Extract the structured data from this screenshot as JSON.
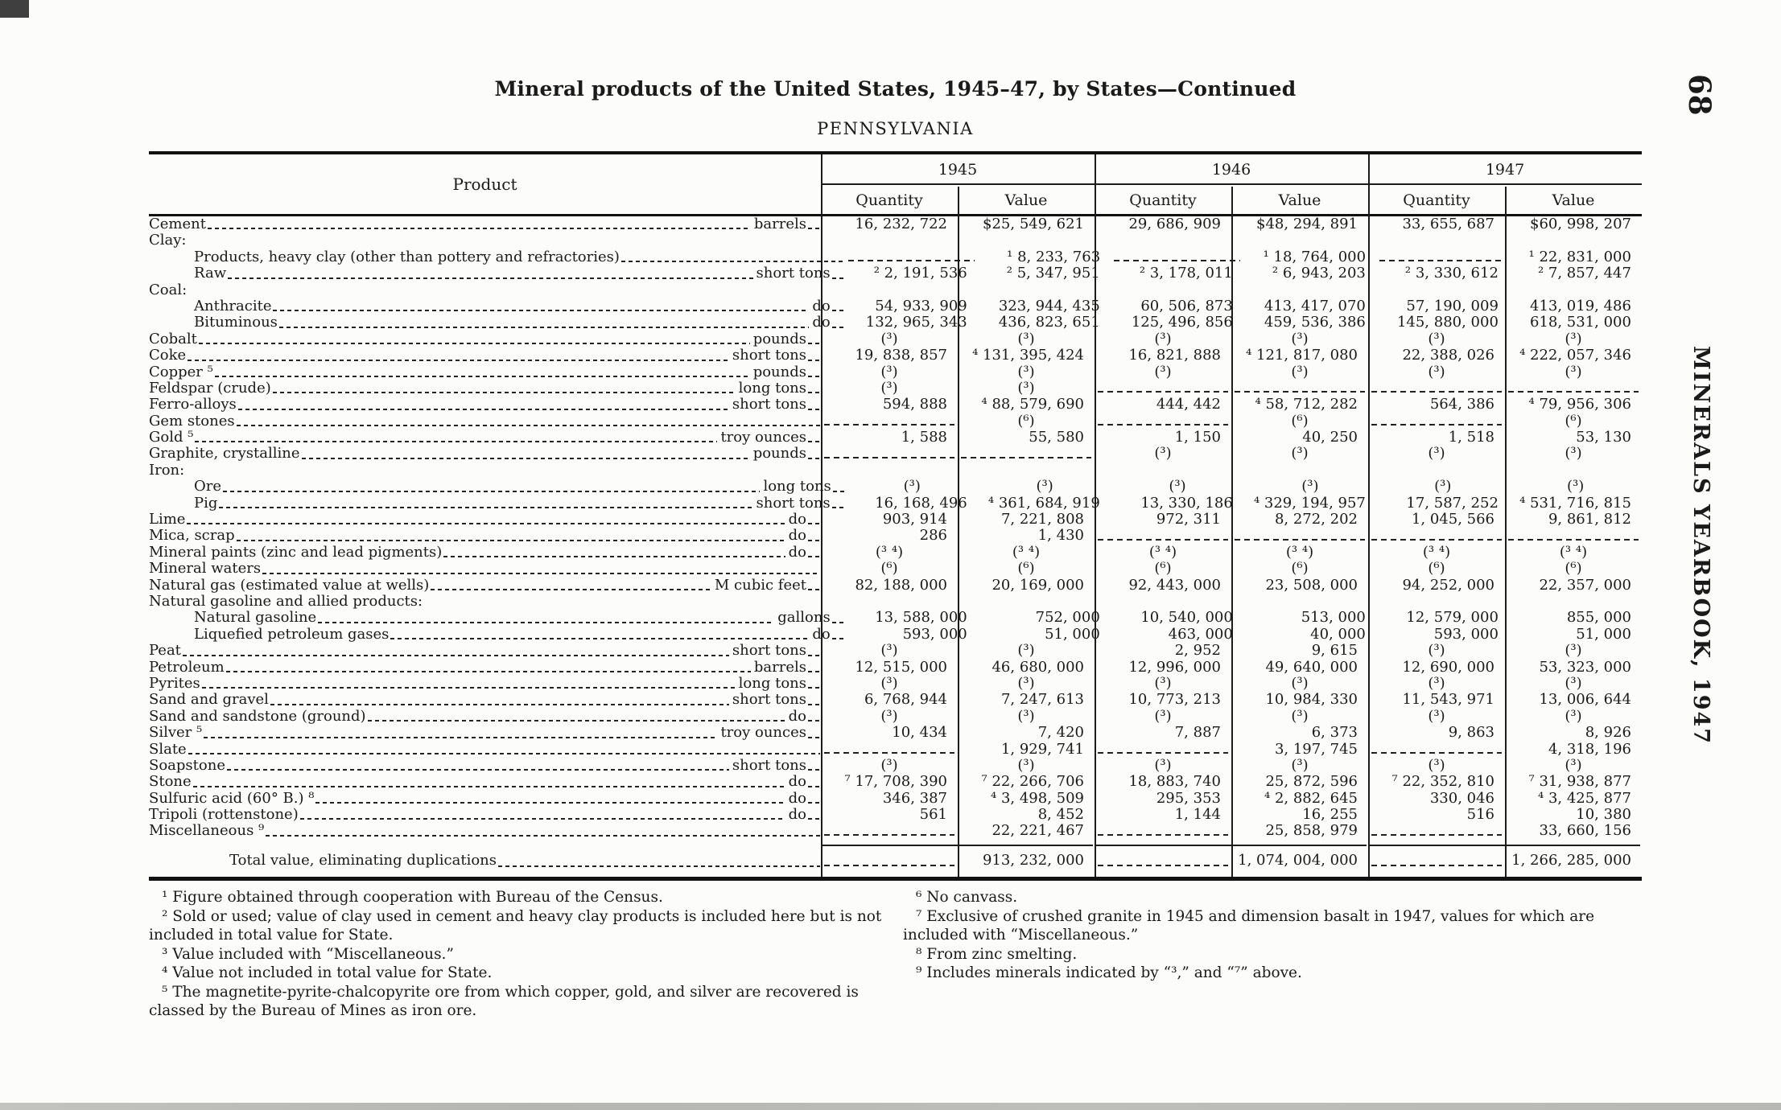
{
  "page": {
    "title": "Mineral products of the United States, 1945–47, by States—Continued",
    "state": "PENNSYLVANIA",
    "page_number": "68",
    "running_title": "MINERALS YEARBOOK, 1947"
  },
  "table": {
    "product_header": "Product",
    "year_headers": [
      "1945",
      "1946",
      "1947"
    ],
    "sub_headers": [
      "Quantity",
      "Value"
    ],
    "rows": [
      {
        "label": "Cement",
        "unit": "barrels",
        "indent": 0,
        "cells": [
          "16, 232, 722",
          "$25, 549, 621",
          "29, 686, 909",
          "$48, 294, 891",
          "33, 655, 687",
          "$60, 998, 207"
        ]
      },
      {
        "label": "Clay:",
        "group": true
      },
      {
        "label": "Products, heavy clay (other than pottery and refractories)",
        "unit": "",
        "indent": 1,
        "cells": [
          "-",
          "¹ 8, 233, 763",
          "-",
          "¹ 18, 764, 000",
          "-",
          "¹ 22, 831, 000"
        ]
      },
      {
        "label": "Raw",
        "unit": "short tons",
        "indent": 1,
        "cells": [
          "² 2, 191, 536",
          "² 5, 347, 951",
          "² 3, 178, 011",
          "² 6, 943, 203",
          "² 3, 330, 612",
          "² 7, 857, 447"
        ]
      },
      {
        "label": "Coal:",
        "group": true
      },
      {
        "label": "Anthracite",
        "unit": "do",
        "indent": 1,
        "cells": [
          "54, 933, 909",
          "323, 944, 435",
          "60, 506, 873",
          "413, 417, 070",
          "57, 190, 009",
          "413, 019, 486"
        ]
      },
      {
        "label": "Bituminous",
        "unit": "do",
        "indent": 1,
        "cells": [
          "132, 965, 343",
          "436, 823, 651",
          "125, 496, 856",
          "459, 536, 386",
          "145, 880, 000",
          "618, 531, 000"
        ]
      },
      {
        "label": "Cobalt",
        "unit": "pounds",
        "indent": 0,
        "cells": [
          "(³)",
          "(³)",
          "(³)",
          "(³)",
          "(³)",
          "(³)"
        ]
      },
      {
        "label": "Coke",
        "unit": "short tons",
        "indent": 0,
        "cells": [
          "19, 838, 857",
          "⁴ 131, 395, 424",
          "16, 821, 888",
          "⁴ 121, 817, 080",
          "22, 388, 026",
          "⁴ 222, 057, 346"
        ]
      },
      {
        "label": "Copper ⁵",
        "unit": "pounds",
        "indent": 0,
        "cells": [
          "(³)",
          "(³)",
          "(³)",
          "(³)",
          "(³)",
          "(³)"
        ]
      },
      {
        "label": "Feldspar (crude)",
        "unit": "long tons",
        "indent": 0,
        "cells": [
          "(³)",
          "(³)",
          "-",
          "-",
          "-",
          "-"
        ]
      },
      {
        "label": "Ferro-alloys",
        "unit": "short tons",
        "indent": 0,
        "cells": [
          "594, 888",
          "⁴ 88, 579, 690",
          "444, 442",
          "⁴ 58, 712, 282",
          "564, 386",
          "⁴ 79, 956, 306"
        ]
      },
      {
        "label": "Gem stones",
        "unit": "",
        "indent": 0,
        "cells": [
          "-",
          "(⁶)",
          "-",
          "(⁶)",
          "-",
          "(⁶)"
        ]
      },
      {
        "label": "Gold ⁵",
        "unit": "troy ounces",
        "indent": 0,
        "cells": [
          "1, 588",
          "55, 580",
          "1, 150",
          "40, 250",
          "1, 518",
          "53, 130"
        ]
      },
      {
        "label": "Graphite, crystalline",
        "unit": "pounds",
        "indent": 0,
        "cells": [
          "-",
          "-",
          "(³)",
          "(³)",
          "(³)",
          "(³)"
        ]
      },
      {
        "label": "Iron:",
        "group": true
      },
      {
        "label": "Ore",
        "unit": "long tons",
        "indent": 1,
        "cells": [
          "(³)",
          "(³)",
          "(³)",
          "(³)",
          "(³)",
          "(³)"
        ]
      },
      {
        "label": "Pig",
        "unit": "short tons",
        "indent": 1,
        "cells": [
          "16, 168, 496",
          "⁴ 361, 684, 919",
          "13, 330, 186",
          "⁴ 329, 194, 957",
          "17, 587, 252",
          "⁴ 531, 716, 815"
        ]
      },
      {
        "label": "Lime",
        "unit": "do",
        "indent": 0,
        "cells": [
          "903, 914",
          "7, 221, 808",
          "972, 311",
          "8, 272, 202",
          "1, 045, 566",
          "9, 861, 812"
        ]
      },
      {
        "label": "Mica, scrap",
        "unit": "do",
        "indent": 0,
        "cells": [
          "286",
          "1, 430",
          "-",
          "-",
          "-",
          "-"
        ]
      },
      {
        "label": "Mineral paints (zinc and lead pigments)",
        "unit": "do",
        "indent": 0,
        "cells": [
          "(³ ⁴)",
          "(³ ⁴)",
          "(³ ⁴)",
          "(³ ⁴)",
          "(³ ⁴)",
          "(³ ⁴)"
        ]
      },
      {
        "label": "Mineral waters",
        "unit": "",
        "indent": 0,
        "cells": [
          "(⁶)",
          "(⁶)",
          "(⁶)",
          "(⁶)",
          "(⁶)",
          "(⁶)"
        ]
      },
      {
        "label": "Natural gas (estimated value at wells)",
        "unit": "M cubic feet",
        "indent": 0,
        "cells": [
          "82, 188, 000",
          "20, 169, 000",
          "92, 443, 000",
          "23, 508, 000",
          "94, 252, 000",
          "22, 357, 000"
        ]
      },
      {
        "label": "Natural gasoline and allied products:",
        "group": true
      },
      {
        "label": "Natural gasoline",
        "unit": "gallons",
        "indent": 1,
        "cells": [
          "13, 588, 000",
          "752, 000",
          "10, 540, 000",
          "513, 000",
          "12, 579, 000",
          "855, 000"
        ]
      },
      {
        "label": "Liquefied petroleum gases",
        "unit": "do",
        "indent": 1,
        "cells": [
          "593, 000",
          "51, 000",
          "463, 000",
          "40, 000",
          "593, 000",
          "51, 000"
        ]
      },
      {
        "label": "Peat",
        "unit": "short tons",
        "indent": 0,
        "cells": [
          "(³)",
          "(³)",
          "2, 952",
          "9, 615",
          "(³)",
          "(³)"
        ]
      },
      {
        "label": "Petroleum",
        "unit": "barrels",
        "indent": 0,
        "cells": [
          "12, 515, 000",
          "46, 680, 000",
          "12, 996, 000",
          "49, 640, 000",
          "12, 690, 000",
          "53, 323, 000"
        ]
      },
      {
        "label": "Pyrites",
        "unit": "long tons",
        "indent": 0,
        "cells": [
          "(³)",
          "(³)",
          "(³)",
          "(³)",
          "(³)",
          "(³)"
        ]
      },
      {
        "label": "Sand and gravel",
        "unit": "short tons",
        "indent": 0,
        "cells": [
          "6, 768, 944",
          "7, 247, 613",
          "10, 773, 213",
          "10, 984, 330",
          "11, 543, 971",
          "13, 006, 644"
        ]
      },
      {
        "label": "Sand and sandstone (ground)",
        "unit": "do",
        "indent": 0,
        "cells": [
          "(³)",
          "(³)",
          "(³)",
          "(³)",
          "(³)",
          "(³)"
        ]
      },
      {
        "label": "Silver ⁵",
        "unit": "troy ounces",
        "indent": 0,
        "cells": [
          "10, 434",
          "7, 420",
          "7, 887",
          "6, 373",
          "9, 863",
          "8, 926"
        ]
      },
      {
        "label": "Slate",
        "unit": "",
        "indent": 0,
        "cells": [
          "-",
          "1, 929, 741",
          "-",
          "3, 197, 745",
          "-",
          "4, 318, 196"
        ]
      },
      {
        "label": "Soapstone",
        "unit": "short tons",
        "indent": 0,
        "cells": [
          "(³)",
          "(³)",
          "(³)",
          "(³)",
          "(³)",
          "(³)"
        ]
      },
      {
        "label": "Stone",
        "unit": "do",
        "indent": 0,
        "cells": [
          "⁷ 17, 708, 390",
          "⁷ 22, 266, 706",
          "18, 883, 740",
          "25, 872, 596",
          "⁷ 22, 352, 810",
          "⁷ 31, 938, 877"
        ]
      },
      {
        "label": "Sulfuric acid (60° B.) ⁸",
        "unit": "do",
        "indent": 0,
        "cells": [
          "346, 387",
          "⁴ 3, 498, 509",
          "295, 353",
          "⁴ 2, 882, 645",
          "330, 046",
          "⁴ 3, 425, 877"
        ]
      },
      {
        "label": "Tripoli (rottenstone)",
        "unit": "do",
        "indent": 0,
        "cells": [
          "561",
          "8, 452",
          "1, 144",
          "16, 255",
          "516",
          "10, 380"
        ]
      },
      {
        "label": "Miscellaneous ⁹",
        "unit": "",
        "indent": 0,
        "cells": [
          "-",
          "22, 221, 467",
          "-",
          "25, 858, 979",
          "-",
          "33, 660, 156"
        ]
      }
    ],
    "total_row": {
      "label": "Total value, eliminating duplications",
      "cells": [
        "-",
        "913, 232, 000",
        "-",
        "1, 074, 004, 000",
        "-",
        "1, 266, 285, 000"
      ]
    }
  },
  "footnotes": {
    "left": [
      "¹ Figure obtained through cooperation with Bureau of the Census.",
      "² Sold or used; value of clay used in cement and heavy clay products is included here but is not included in total value for State.",
      "³ Value included with “Miscellaneous.”",
      "⁴ Value not included in total value for State.",
      "⁵ The magnetite-pyrite-chalcopyrite ore from which copper, gold, and silver are recovered is classed by the Bureau of Mines as iron ore."
    ],
    "right": [
      "⁶ No canvass.",
      "⁷ Exclusive of crushed granite in 1945 and dimension basalt in 1947, values for which are included with “Miscellaneous.”",
      "⁸ From zinc smelting.",
      "⁹ Includes minerals indicated by “³,” and “⁷” above."
    ]
  }
}
